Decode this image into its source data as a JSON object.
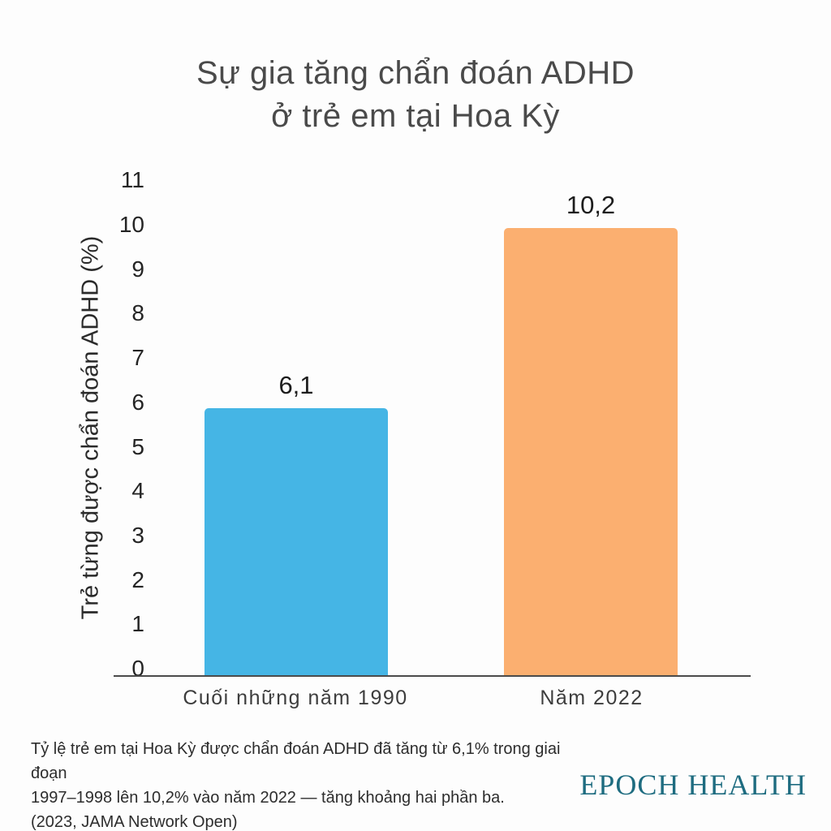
{
  "header": {
    "title_lines": [
      "Sự gia tăng chẩn đoán ADHD",
      "ở trẻ em tại Hoa Kỳ"
    ]
  },
  "chart_data": {
    "type": "bar",
    "title": "Sự gia tăng chẩn đoán ADHD ở trẻ em tại Hoa Kỳ",
    "categories": [
      "Cuối những năm 1990",
      "Năm 2022"
    ],
    "values": [
      6.1,
      10.2
    ],
    "value_labels": [
      "6,1",
      "10,2"
    ],
    "bar_colors": [
      "#45b5e5",
      "#fbaf70"
    ],
    "xlabel": "",
    "ylabel": "Trẻ từng được chẩn đoán ADHD (%)",
    "ylim": [
      0,
      11
    ],
    "yticks": [
      0,
      1,
      2,
      3,
      4,
      5,
      6,
      7,
      8,
      9,
      10,
      11
    ],
    "grid": false,
    "legend": "none"
  },
  "footer": {
    "caption_lines": [
      "Tỷ lệ trẻ em tại Hoa Kỳ được chẩn đoán ADHD đã tăng từ 6,1% trong giai đoạn",
      "1997–1998 lên 10,2% vào năm 2022 — tăng khoảng hai phần ba.",
      "(2023, JAMA Network Open)"
    ],
    "brand": "EPOCH HEALTH",
    "brand_color": "#1e6c80"
  }
}
